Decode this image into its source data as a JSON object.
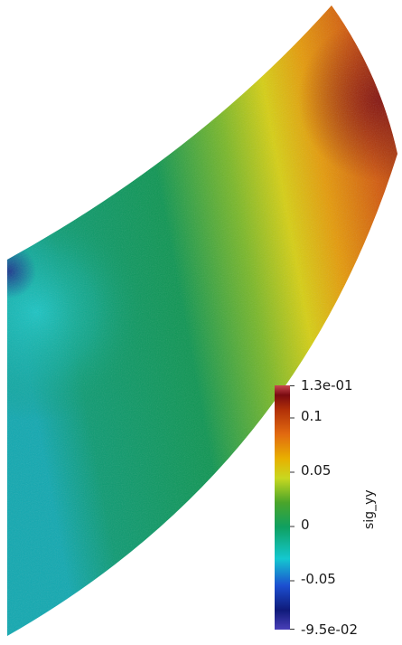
{
  "legend": {
    "title": "sig_yy",
    "ticks": [
      {
        "label": "1.3e-01",
        "value": 0.13
      },
      {
        "label": "0.1",
        "value": 0.1
      },
      {
        "label": "0.05",
        "value": 0.05
      },
      {
        "label": "0",
        "value": 0
      },
      {
        "label": "-0.05",
        "value": -0.05
      },
      {
        "label": "-9.5e-02",
        "value": -0.095
      }
    ],
    "range": [
      -0.095,
      0.13
    ],
    "colormap": [
      "#4a3fb8",
      "#0f1a7a",
      "#1c4fd0",
      "#14c8d0",
      "#0fa060",
      "#4aa52a",
      "#c8d820",
      "#e8b000",
      "#e26a10",
      "#b13008",
      "#7a0a10",
      "#c84850"
    ]
  },
  "field": {
    "name": "sig_yy",
    "shape": "curved-plate"
  }
}
